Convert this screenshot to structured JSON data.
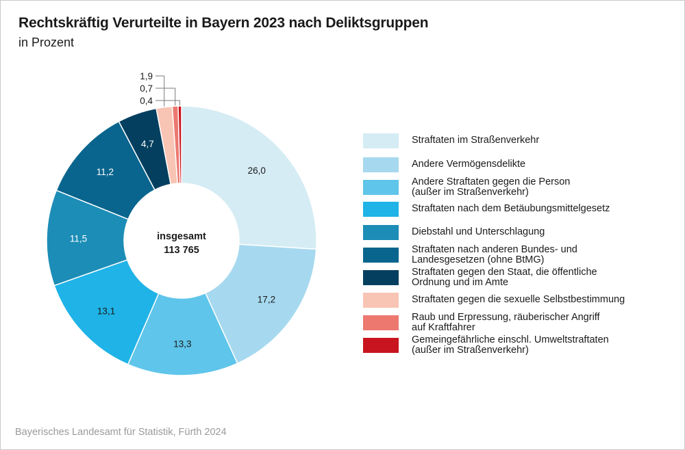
{
  "chart_data": {
    "type": "pie",
    "title": "Rechtskräftig Verurteilte in Bayern 2023 nach Deliktsgruppen",
    "subtitle": "in Prozent",
    "center_label": "insgesamt",
    "center_value": "113 765",
    "source": "Bayerisches Landesamt für Statistik, Fürth 2024",
    "slices": [
      {
        "label": "Straftaten im Straßenverkehr",
        "value": 26.0,
        "display": "26,0",
        "color": "#d5ecf4",
        "text_color": "#1a1a1a"
      },
      {
        "label": "Andere Vermögensdelikte",
        "value": 17.2,
        "display": "17,2",
        "color": "#a6d9ef",
        "text_color": "#1a1a1a"
      },
      {
        "label": "Andere Straftaten gegen die Person\n(außer im Straßenverkehr)",
        "value": 13.3,
        "display": "13,3",
        "color": "#5fc5ea",
        "text_color": "#1a1a1a"
      },
      {
        "label": "Straftaten nach dem Betäubungsmittelgesetz",
        "value": 13.1,
        "display": "13,1",
        "color": "#1fb3e7",
        "text_color": "#1a1a1a"
      },
      {
        "label": "Diebstahl und Unterschlagung",
        "value": 11.5,
        "display": "11,5",
        "color": "#1c8db6",
        "text_color": "#ffffff"
      },
      {
        "label": "Straftaten nach anderen Bundes- und\nLandesgesetzen (ohne BtMG)",
        "value": 11.2,
        "display": "11,2",
        "color": "#09658e",
        "text_color": "#ffffff"
      },
      {
        "label": "Straftaten gegen den Staat, die öffentliche\nOrdnung und im Amte",
        "value": 4.7,
        "display": "4,7",
        "color": "#043f5f",
        "text_color": "#ffffff"
      },
      {
        "label": "Straftaten gegen die sexuelle Selbstbestimmung",
        "value": 1.9,
        "display": "1,9",
        "color": "#f8c4b4",
        "text_color": "#1a1a1a"
      },
      {
        "label": "Raub und Erpressung, räuberischer Angriff\nauf Kraftfahrer",
        "value": 0.7,
        "display": "0,7",
        "color": "#ec7870",
        "text_color": "#1a1a1a"
      },
      {
        "label": "Gemeingefährliche einschl. Umweltstraftaten\n(außer im Straßenverkehr)",
        "value": 0.4,
        "display": "0,4",
        "color": "#c8141e",
        "text_color": "#1a1a1a"
      }
    ]
  }
}
